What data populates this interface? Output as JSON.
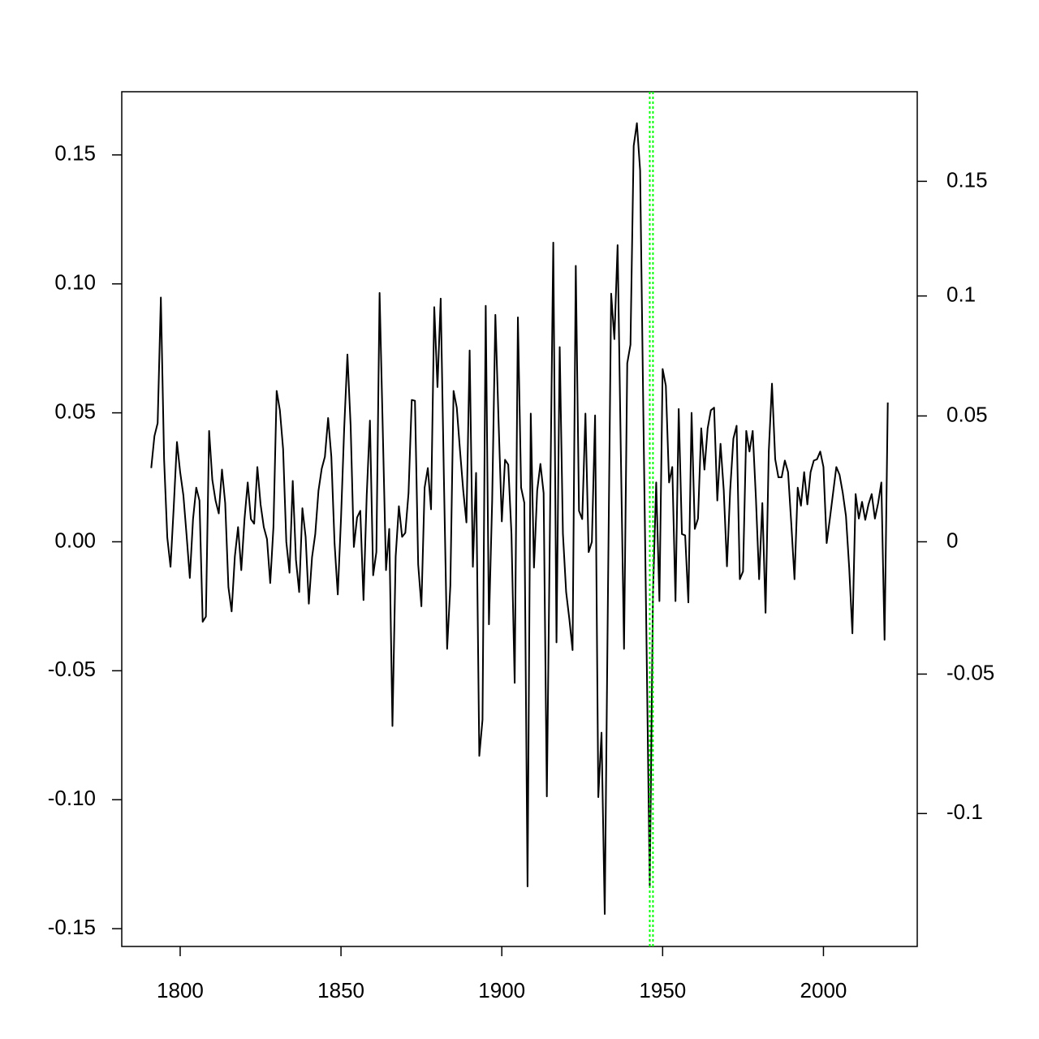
{
  "chart_data": {
    "type": "line",
    "x": [
      1791,
      1792,
      1793,
      1794,
      1795,
      1796,
      1797,
      1798,
      1799,
      1800,
      1801,
      1802,
      1803,
      1804,
      1805,
      1806,
      1807,
      1808,
      1809,
      1810,
      1811,
      1812,
      1813,
      1814,
      1815,
      1816,
      1817,
      1818,
      1819,
      1820,
      1821,
      1822,
      1823,
      1824,
      1825,
      1826,
      1827,
      1828,
      1829,
      1830,
      1831,
      1832,
      1833,
      1834,
      1835,
      1836,
      1837,
      1838,
      1839,
      1840,
      1841,
      1842,
      1843,
      1844,
      1845,
      1846,
      1847,
      1848,
      1849,
      1850,
      1851,
      1852,
      1853,
      1854,
      1855,
      1856,
      1857,
      1858,
      1859,
      1860,
      1861,
      1862,
      1863,
      1864,
      1865,
      1866,
      1867,
      1868,
      1869,
      1870,
      1871,
      1872,
      1873,
      1874,
      1875,
      1876,
      1877,
      1878,
      1879,
      1880,
      1881,
      1882,
      1883,
      1884,
      1885,
      1886,
      1887,
      1888,
      1889,
      1890,
      1891,
      1892,
      1893,
      1894,
      1895,
      1896,
      1897,
      1898,
      1899,
      1900,
      1901,
      1902,
      1903,
      1904,
      1905,
      1906,
      1907,
      1908,
      1909,
      1910,
      1911,
      1912,
      1913,
      1914,
      1915,
      1916,
      1917,
      1918,
      1919,
      1920,
      1921,
      1922,
      1923,
      1924,
      1925,
      1926,
      1927,
      1928,
      1929,
      1930,
      1931,
      1932,
      1933,
      1934,
      1935,
      1936,
      1937,
      1938,
      1939,
      1940,
      1941,
      1942,
      1943,
      1944,
      1945,
      1946,
      1947,
      1948,
      1949,
      1950,
      1951,
      1952,
      1953,
      1954,
      1955,
      1956,
      1957,
      1958,
      1959,
      1960,
      1961,
      1962,
      1963,
      1964,
      1965,
      1966,
      1967,
      1968,
      1969,
      1970,
      1971,
      1972,
      1973,
      1974,
      1975,
      1976,
      1977,
      1978,
      1979,
      1980,
      1981,
      1982,
      1983,
      1984,
      1985,
      1986,
      1987,
      1988,
      1989,
      1990,
      1991,
      1992,
      1993,
      1994,
      1995,
      1996,
      1997,
      1998,
      1999,
      2000,
      2001,
      2002,
      2003,
      2004,
      2005,
      2006,
      2007,
      2008,
      2009,
      2010,
      2011,
      2012,
      2013,
      2014,
      2015,
      2016,
      2017,
      2018,
      2019,
      2020
    ],
    "series": [
      {
        "color": "#000000",
        "values": [
          0.0286,
          0.041,
          0.046,
          0.0947,
          0.032,
          0.0016,
          -0.0097,
          0.0135,
          0.0387,
          0.027,
          0.018,
          0.0025,
          -0.014,
          0.0088,
          0.021,
          0.016,
          -0.031,
          -0.029,
          0.043,
          0.024,
          0.016,
          0.011,
          0.028,
          0.015,
          -0.0176,
          -0.027,
          -0.0057,
          0.0057,
          -0.011,
          0.0088,
          0.023,
          0.0088,
          0.007,
          0.029,
          0.0145,
          0.0057,
          0.001,
          -0.016,
          0.0057,
          0.0585,
          0.051,
          0.036,
          0,
          -0.012,
          0.0236,
          -0.007,
          -0.0195,
          0.013,
          0.002,
          -0.024,
          -0.006,
          0.003,
          0.0198,
          0.0283,
          0.033,
          0.048,
          0.033,
          -0.0006,
          -0.0204,
          0.0088,
          0.044,
          0.0726,
          0.045,
          -0.002,
          0.0094,
          0.012,
          -0.0226,
          0.018,
          0.047,
          -0.013,
          -0.004,
          0.0965,
          0.043,
          -0.011,
          0.005,
          -0.0714,
          -0.0057,
          0.0138,
          0.0019,
          0.0035,
          0.0189,
          0.055,
          0.0547,
          -0.0088,
          -0.025,
          0.021,
          0.0286,
          0.0126,
          0.091,
          0.06,
          0.0943,
          0.0245,
          -0.0415,
          -0.017,
          0.0585,
          0.052,
          0.0355,
          0.02,
          0.0075,
          0.0742,
          -0.0097,
          0.0267,
          -0.083,
          -0.069,
          0.0915,
          -0.032,
          0.0157,
          0.088,
          0.0465,
          0.0079,
          0.0318,
          0.0299,
          0.0031,
          -0.0547,
          0.087,
          0.021,
          0.0151,
          -0.1336,
          0.0497,
          -0.01,
          0.0198,
          0.0302,
          0.0189,
          -0.0987,
          0.01,
          0.116,
          -0.039,
          0.0755,
          0.0031,
          -0.0195,
          -0.03,
          -0.042,
          0.107,
          0.012,
          0.0088,
          0.0497,
          -0.004,
          0,
          0.049,
          -0.099,
          -0.074,
          -0.1443,
          -0.02,
          0.0962,
          0.0786,
          0.115,
          0.035,
          -0.0415,
          0.0692,
          0.0764,
          0.1535,
          0.1623,
          0.144,
          0.05,
          -0.04,
          -0.1336,
          -0.02,
          0.023,
          -0.023,
          0.067,
          0.0605,
          0.023,
          0.029,
          -0.023,
          0.0515,
          0.003,
          0.0025,
          -0.0235,
          0.05,
          0.005,
          0.009,
          0.044,
          0.028,
          0.044,
          0.051,
          0.052,
          0.016,
          0.038,
          0.02,
          -0.0095,
          0.02,
          0.04,
          0.045,
          -0.0145,
          -0.0115,
          0.043,
          0.035,
          0.043,
          0.017,
          -0.0145,
          0.015,
          -0.0275,
          0.035,
          0.0613,
          0.032,
          0.025,
          0.025,
          0.0315,
          0.027,
          0.007,
          -0.0145,
          0.021,
          0.014,
          0.027,
          0.0145,
          0.027,
          0.0315,
          0.032,
          0.035,
          0.029,
          -0.0005,
          0.009,
          0.019,
          0.029,
          0.026,
          0.019,
          0.01,
          -0.01,
          -0.0355,
          0.0185,
          0.009,
          0.0155,
          0.0085,
          0.0145,
          0.0185,
          0.009,
          0.015,
          0.023,
          -0.038,
          0.054
        ]
      }
    ],
    "xlim": [
      1781.84,
      2029.16
    ],
    "xticks": [
      1800,
      1850,
      1900,
      1950,
      2000
    ],
    "ylim": [
      -0.1569,
      0.1745
    ],
    "yticks": [
      {
        "value": -0.15,
        "label": "-0.15"
      },
      {
        "value": -0.1,
        "label": "-0.10"
      },
      -0.05,
      {
        "value": 0,
        "label": "0.00"
      },
      0.05,
      {
        "value": 0.1,
        "label": "0.10"
      },
      0.15
    ],
    "y2ticks": [
      -0.1,
      -0.05,
      0,
      0.05,
      0.1,
      0.15
    ],
    "y2_scale": "log1p",
    "vlines": [
      {
        "x": 1946,
        "color": "#00ff00"
      },
      {
        "x": 1947,
        "color": "#00ff00"
      }
    ],
    "grid": false
  }
}
